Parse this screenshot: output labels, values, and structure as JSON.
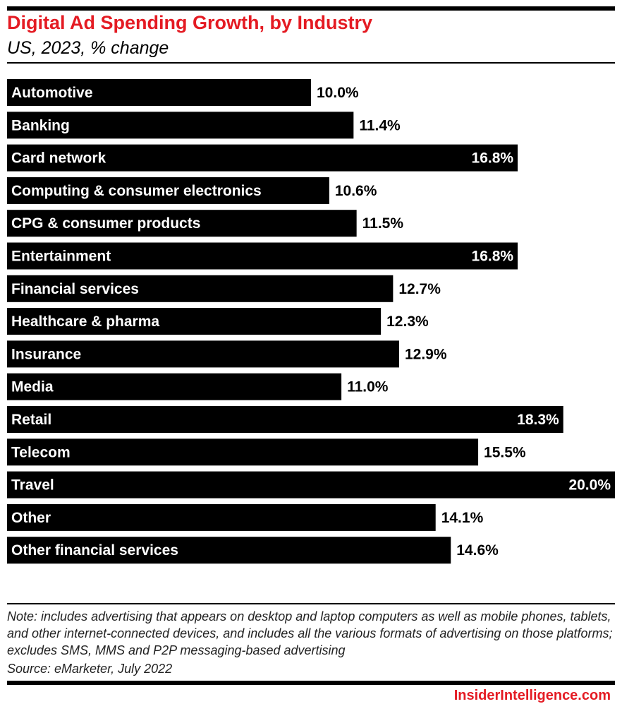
{
  "header": {
    "title": "Digital Ad Spending Growth, by Industry",
    "subtitle": "US, 2023, % change"
  },
  "chart_data": {
    "type": "bar",
    "orientation": "horizontal",
    "title": "Digital Ad Spending Growth, by Industry",
    "subtitle": "US, 2023, % change",
    "categories": [
      "Automotive",
      "Banking",
      "Card network",
      "Computing & consumer electronics",
      "CPG & consumer products",
      "Entertainment",
      "Financial services",
      "Healthcare & pharma",
      "Insurance",
      "Media",
      "Retail",
      "Telecom",
      "Travel",
      "Other",
      "Other financial services"
    ],
    "values": [
      10.0,
      11.4,
      16.8,
      10.6,
      11.5,
      16.8,
      12.7,
      12.3,
      12.9,
      11.0,
      18.3,
      15.5,
      20.0,
      14.1,
      14.6
    ],
    "value_labels": [
      "10.0%",
      "11.4%",
      "16.8%",
      "10.6%",
      "11.5%",
      "16.8%",
      "12.7%",
      "12.3%",
      "12.9%",
      "11.0%",
      "18.3%",
      "15.5%",
      "20.0%",
      "14.1%",
      "14.6%"
    ],
    "xlim": [
      0,
      20
    ],
    "grid": false,
    "colors": {
      "bar": "#000000",
      "title": "#e41b23"
    }
  },
  "footer": {
    "note": "Note: includes advertising that appears on desktop and laptop computers as well as mobile phones, tablets, and other internet-connected devices, and includes all the various formats of advertising on those platforms; excludes SMS, MMS and P2P messaging-based advertising",
    "source": "Source: eMarketer, July 2022",
    "brand": "InsiderIntelligence.com"
  }
}
